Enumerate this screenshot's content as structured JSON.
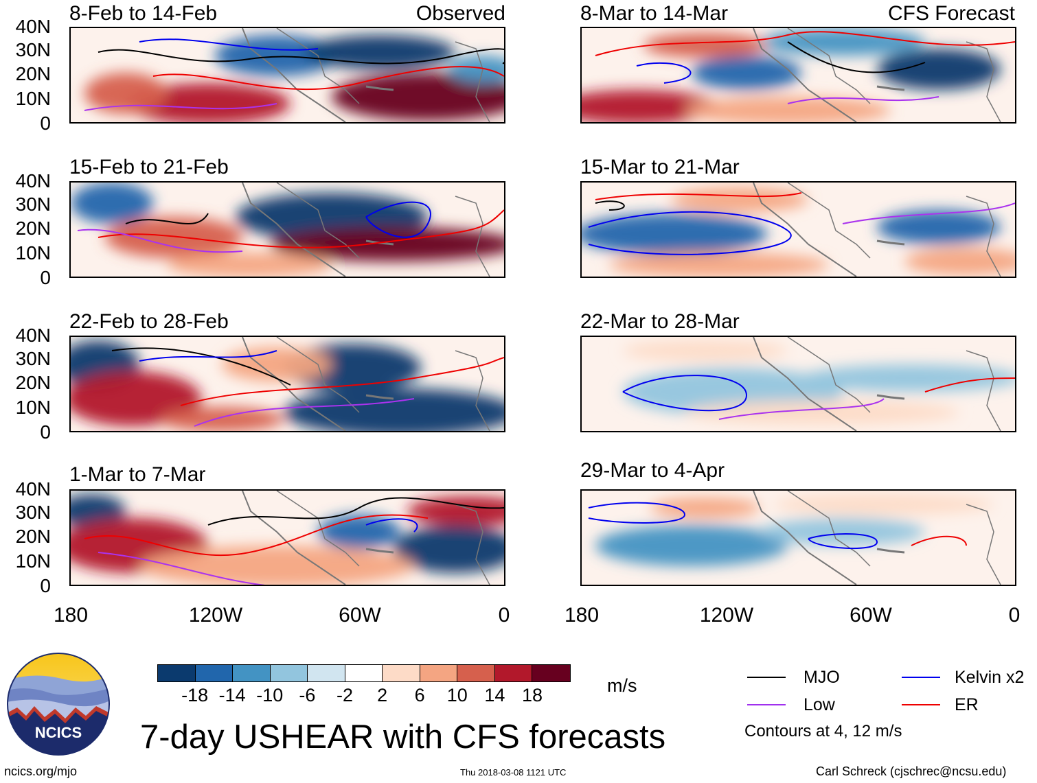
{
  "header": {
    "left_label": "Observed",
    "right_label": "CFS Forecast"
  },
  "panels_left": [
    {
      "title": "8-Feb to 14-Feb"
    },
    {
      "title": "15-Feb to 21-Feb"
    },
    {
      "title": "22-Feb to 28-Feb"
    },
    {
      "title": "1-Mar to 7-Mar"
    }
  ],
  "panels_right": [
    {
      "title": "8-Mar to 14-Mar"
    },
    {
      "title": "15-Mar to 21-Mar"
    },
    {
      "title": "22-Mar to 28-Mar"
    },
    {
      "title": "29-Mar to 4-Apr"
    }
  ],
  "lat_labels": [
    "40N",
    "30N",
    "20N",
    "10N",
    "0"
  ],
  "lon_labels": [
    "180",
    "120W",
    "60W",
    "0"
  ],
  "colorbar": {
    "unit": "m/s",
    "ticks": [
      "-18",
      "-14",
      "-10",
      "-6",
      "-2",
      "2",
      "6",
      "10",
      "14",
      "18"
    ],
    "colors": [
      "#0b3a6e",
      "#2166ac",
      "#4393c3",
      "#92c5de",
      "#d1e5f0",
      "#ffffff",
      "#fddbc7",
      "#f4a582",
      "#d6604d",
      "#b2182b",
      "#67001f"
    ]
  },
  "legend": {
    "items": [
      {
        "label": "MJO",
        "color": "#000000"
      },
      {
        "label": "Kelvin x2",
        "color": "#0000ee"
      },
      {
        "label": "Low",
        "color": "#a030ee"
      },
      {
        "label": "ER",
        "color": "#ee0000"
      }
    ],
    "note": "Contours at 4, 12 m/s"
  },
  "title": "7-day USHEAR with CFS forecasts",
  "logo_text": "NCICS",
  "footer": {
    "left": "ncics.org/mjo",
    "center": "Thu 2018-03-08 1121 UTC",
    "right": "Carl Schreck (cjschrec@ncsu.edu)"
  }
}
